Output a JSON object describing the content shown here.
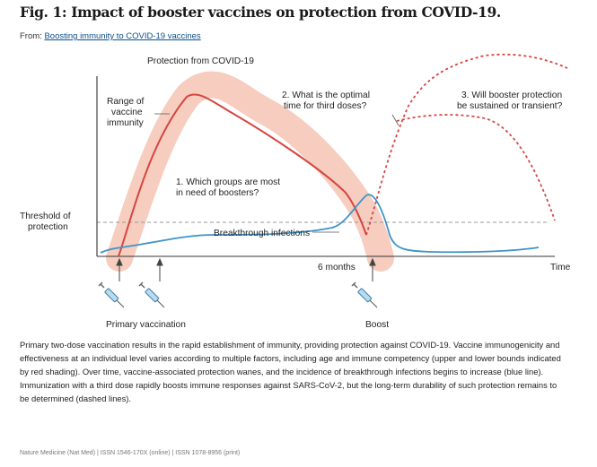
{
  "header": {
    "title": "Fig. 1: Impact of booster vaccines on protection from COVID-19.",
    "from_label": "From:",
    "from_link": "Boosting immunity to COVID-19 vaccines"
  },
  "diagram": {
    "labels": {
      "protection": "Protection from COVID-19",
      "range_line1": "Range of",
      "range_line2": "vaccine",
      "range_line3": "immunity",
      "threshold_line1": "Threshold of",
      "threshold_line2": "protection",
      "q1_line1": "1. Which groups are most",
      "q1_line2": "in need of boosters?",
      "q2_line1": "2. What is the optimal",
      "q2_line2": "time for third doses?",
      "q3_line1": "3. Will booster protection",
      "q3_line2": "be sustained or transient?",
      "breakthrough": "Breakthrough infections",
      "six_months": "6 months",
      "time": "Time",
      "primary": "Primary vaccination",
      "boost": "Boost"
    },
    "colors": {
      "band": "#f6cdbf",
      "red_line": "#d64541",
      "blue_line": "#3f93c9",
      "threshold": "#9a9a9a",
      "axis": "#333333"
    }
  },
  "caption": "Primary two-dose vaccination results in the rapid establishment of immunity, providing protection against COVID-19. Vaccine immunogenicity and effectiveness at an individual level varies according to multiple factors, including age and immune competency (upper and lower bounds indicated by red shading). Over time, vaccine-associated protection wanes, and the incidence of breakthrough infections begins to increase (blue line). Immunization with a third dose rapidly boosts immune responses against SARS-CoV-2, but the long-term durability of such protection remains to be determined (dashed lines).",
  "footer": "Nature Medicine (Nat Med) | ISSN 1546-170X (online) | ISSN 1078-8956 (print)"
}
